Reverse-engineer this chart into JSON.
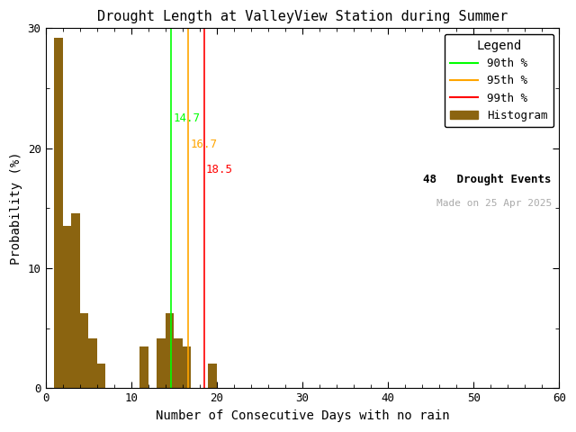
{
  "title": "Drought Length at ValleyView Station during Summer",
  "xlabel": "Number of Consecutive Days with no rain",
  "ylabel": "Probability (%)",
  "xlim": [
    0,
    60
  ],
  "ylim": [
    0,
    30
  ],
  "xticks": [
    0,
    10,
    20,
    30,
    40,
    50,
    60
  ],
  "yticks": [
    0,
    10,
    20,
    30
  ],
  "bar_color": "#8B6410",
  "drought_events": 48,
  "p90": 14.7,
  "p95": 16.7,
  "p99": 18.5,
  "p90_color": "#00FF00",
  "p95_color": "#FFA500",
  "p99_color": "#FF0000",
  "p90_label": "90th %",
  "p95_label": "95th %",
  "p99_label": "99th %",
  "hist_label": "Histogram",
  "events_label": "48   Drought Events",
  "made_on_label": "Made on 25 Apr 2025",
  "made_on_color": "#AAAAAA",
  "legend_title": "Legend",
  "bg_color": "#FFFFFF",
  "bar_heights": [
    29.2,
    13.5,
    14.6,
    6.25,
    4.17,
    2.08,
    0,
    0,
    0,
    0,
    3.5,
    0,
    4.17,
    6.25,
    4.17,
    3.5,
    0,
    0,
    2.08,
    0,
    0,
    0,
    0,
    0,
    0,
    0,
    0,
    0,
    0,
    0,
    0,
    0,
    0,
    0,
    0,
    0,
    0,
    0,
    0,
    0,
    0,
    0,
    0,
    0,
    0,
    0,
    0,
    0,
    0,
    0,
    0,
    0,
    0,
    0,
    0,
    0,
    0,
    0,
    0,
    0
  ]
}
